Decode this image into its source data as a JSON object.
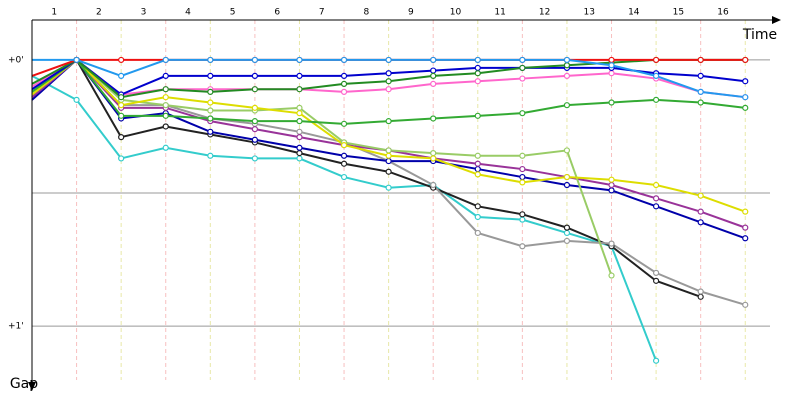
{
  "chart_data": {
    "type": "line",
    "x_label": "Time",
    "y_label": "Gap",
    "x": [
      0,
      1,
      2,
      3,
      4,
      5,
      6,
      7,
      8,
      9,
      10,
      11,
      12,
      13,
      14,
      15,
      16
    ],
    "xlim": [
      0,
      16.6
    ],
    "xticks": [
      {
        "value": 0.5,
        "label": "1"
      },
      {
        "value": 1.5,
        "label": "2"
      },
      {
        "value": 2.5,
        "label": "3"
      },
      {
        "value": 3.5,
        "label": "4"
      },
      {
        "value": 4.5,
        "label": "5"
      },
      {
        "value": 5.5,
        "label": "6"
      },
      {
        "value": 6.5,
        "label": "7"
      },
      {
        "value": 7.5,
        "label": "8"
      },
      {
        "value": 8.5,
        "label": "9"
      },
      {
        "value": 9.5,
        "label": "10"
      },
      {
        "value": 10.5,
        "label": "11"
      },
      {
        "value": 11.5,
        "label": "12"
      },
      {
        "value": 12.5,
        "label": "13"
      },
      {
        "value": 13.5,
        "label": "14"
      },
      {
        "value": 14.5,
        "label": "15"
      },
      {
        "value": 15.5,
        "label": "16"
      }
    ],
    "ylim": [
      -0.15,
      1.24
    ],
    "yticks": [
      {
        "value": 0,
        "label": "+0'"
      },
      {
        "value": 0.5,
        "label": null
      },
      {
        "value": 1,
        "label": "+1'"
      }
    ],
    "grid": true,
    "series": [
      {
        "color": "#33cccc",
        "values": [
          0.06,
          0.15,
          0.37,
          0.33,
          0.36,
          0.37,
          0.37,
          0.44,
          0.48,
          0.47,
          0.59,
          0.6,
          0.65,
          0.7,
          1.13,
          null,
          null
        ]
      },
      {
        "color": "#222222",
        "values": [
          0.14,
          0,
          0.29,
          0.25,
          0.28,
          0.31,
          0.35,
          0.39,
          0.42,
          0.48,
          0.55,
          0.58,
          0.63,
          0.7,
          0.83,
          0.89,
          null
        ]
      },
      {
        "color": "#999999",
        "values": [
          0.12,
          0,
          0.17,
          0.17,
          0.22,
          0.24,
          0.27,
          0.31,
          0.38,
          0.47,
          0.65,
          0.7,
          0.68,
          0.69,
          0.8,
          0.87,
          0.92
        ]
      },
      {
        "color": "#0000aa",
        "values": [
          0.15,
          0,
          0.22,
          0.2,
          0.27,
          0.3,
          0.33,
          0.36,
          0.38,
          0.38,
          0.41,
          0.44,
          0.47,
          0.49,
          0.55,
          0.61,
          0.67
        ]
      },
      {
        "color": "#993399",
        "values": [
          0.14,
          0,
          0.18,
          0.18,
          0.23,
          0.26,
          0.29,
          0.32,
          0.34,
          0.37,
          0.39,
          0.41,
          0.44,
          0.47,
          0.52,
          0.57,
          0.63
        ]
      },
      {
        "color": "#99cc66",
        "values": [
          0.13,
          0,
          0.15,
          0.17,
          0.19,
          0.19,
          0.18,
          0.31,
          0.34,
          0.35,
          0.36,
          0.36,
          0.34,
          0.81,
          null,
          null,
          null
        ]
      },
      {
        "color": "#dddd00",
        "values": [
          0.13,
          0,
          0.17,
          0.14,
          0.16,
          0.18,
          0.2,
          0.32,
          0.36,
          0.37,
          0.43,
          0.46,
          0.44,
          0.45,
          0.47,
          0.51,
          0.57
        ]
      },
      {
        "color": "#33aa33",
        "values": [
          0.12,
          0,
          0.21,
          0.21,
          0.22,
          0.23,
          0.23,
          0.24,
          0.23,
          0.22,
          0.21,
          0.2,
          0.17,
          0.16,
          0.15,
          0.16,
          0.18
        ]
      },
      {
        "color": "#ff66cc",
        "values": [
          0.1,
          0,
          0.13,
          0.11,
          0.11,
          0.11,
          0.11,
          0.12,
          0.11,
          0.09,
          0.08,
          0.07,
          0.06,
          0.05,
          0.07,
          0.12,
          0.14
        ]
      },
      {
        "color": "#0000cd",
        "values": [
          0.11,
          0,
          0.13,
          0.06,
          0.06,
          0.06,
          0.06,
          0.06,
          0.05,
          0.04,
          0.03,
          0.03,
          0.03,
          0.03,
          0.05,
          0.06,
          0.08
        ]
      },
      {
        "color": "#228b22",
        "values": [
          0.09,
          0,
          0.14,
          0.11,
          0.12,
          0.11,
          0.11,
          0.09,
          0.08,
          0.06,
          0.05,
          0.03,
          0.02,
          0.01,
          0,
          0,
          0
        ]
      },
      {
        "color": "#ee1111",
        "values": [
          0.06,
          0,
          0,
          0,
          0,
          0,
          0,
          0,
          0,
          0,
          0,
          0,
          0,
          0,
          0,
          0,
          0
        ]
      },
      {
        "color": "#2299ee",
        "values": [
          0,
          0,
          0.06,
          0,
          0,
          0,
          0,
          0,
          0,
          0,
          0,
          0,
          0,
          0.02,
          0.06,
          0.12,
          0.14
        ]
      }
    ]
  }
}
